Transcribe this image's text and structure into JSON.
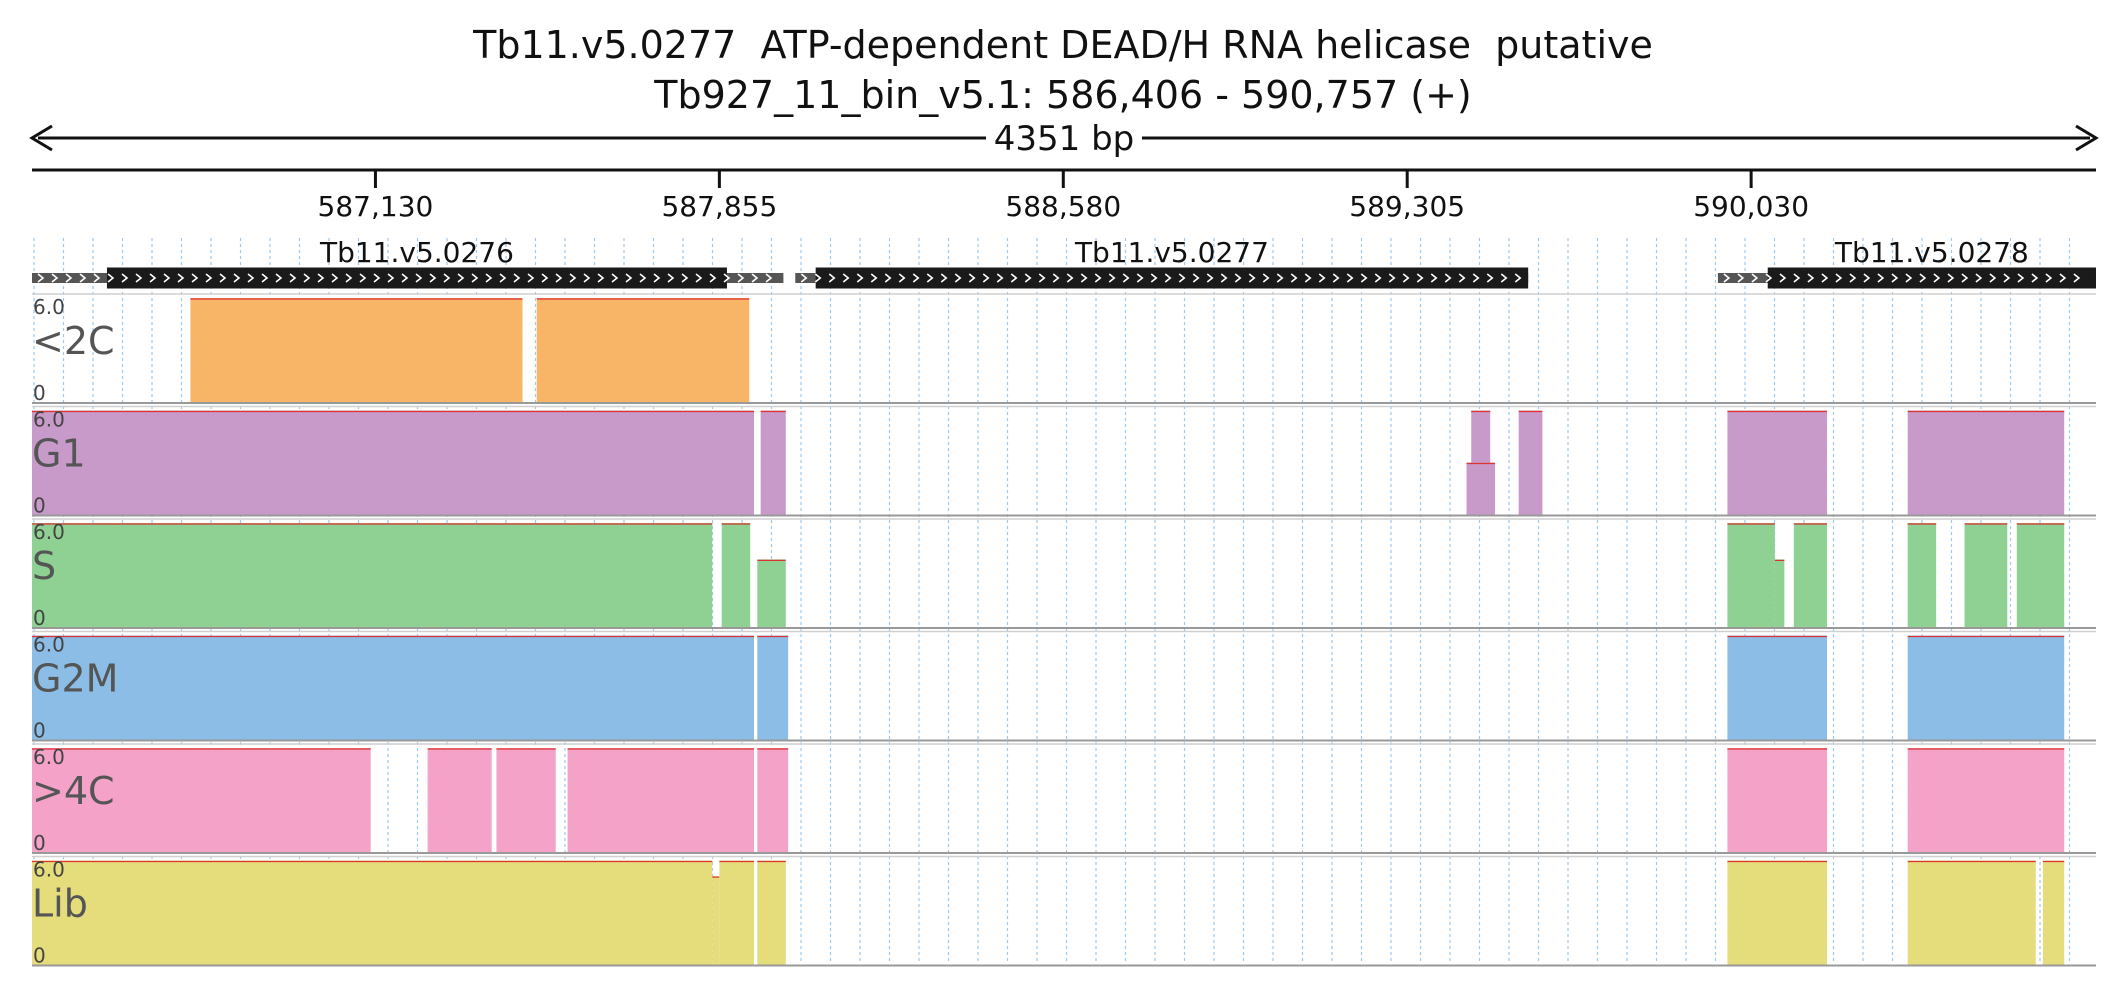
{
  "header": {
    "title": "Tb11.v5.0277  ATP-dependent DEAD/H RNA helicase  putative",
    "location": "Tb927_11_bin_v5.1: 586,406 - 590,757 (+)",
    "span_label": "4351 bp"
  },
  "region": {
    "start": 586406,
    "end": 590757
  },
  "ruler": {
    "ticks": [
      {
        "value": 587130,
        "label": "587,130"
      },
      {
        "value": 587855,
        "label": "587,855"
      },
      {
        "value": 588580,
        "label": "588,580"
      },
      {
        "value": 589305,
        "label": "589,305"
      },
      {
        "value": 590030,
        "label": "590,030"
      }
    ]
  },
  "genes": [
    {
      "name": "Tb11.v5.0276",
      "transcript": [
        586406,
        586968
      ],
      "cds": [
        586564,
        587871
      ],
      "utr": [
        587871,
        587990
      ]
    },
    {
      "name": "Tb11.v5.0277",
      "transcript": [
        588015,
        589560
      ],
      "cds": [
        588058,
        589560
      ],
      "utr": null
    },
    {
      "name": "Tb11.v5.0278",
      "transcript": [
        589960,
        590757
      ],
      "cds": [
        590065,
        590757
      ],
      "utr": null
    }
  ],
  "tracks": [
    {
      "name": "<2C",
      "color": "#f9b567",
      "ymax_label": "6.0",
      "ymin_label": "0",
      "segments": [
        {
          "start": 586740,
          "end": 587440,
          "level": 1.0
        },
        {
          "start": 587470,
          "end": 587918,
          "level": 1.0
        }
      ]
    },
    {
      "name": "G1",
      "color": "#c79ac9",
      "ymax_label": "6.0",
      "ymin_label": "0",
      "segments": [
        {
          "start": 586406,
          "end": 587928,
          "level": 1.0
        },
        {
          "start": 587942,
          "end": 587995,
          "level": 1.0
        },
        {
          "start": 589440,
          "end": 589480,
          "level": 1.0
        },
        {
          "start": 589430,
          "end": 589490,
          "level": 0.5
        },
        {
          "start": 589540,
          "end": 589590,
          "level": 1.0
        },
        {
          "start": 589980,
          "end": 590190,
          "level": 1.0
        },
        {
          "start": 590360,
          "end": 590690,
          "level": 1.0
        }
      ]
    },
    {
      "name": "S",
      "color": "#8ed193",
      "ymax_label": "6.0",
      "ymin_label": "0",
      "segments": [
        {
          "start": 586406,
          "end": 587840,
          "level": 1.0
        },
        {
          "start": 587860,
          "end": 587920,
          "level": 1.0
        },
        {
          "start": 587935,
          "end": 587995,
          "level": 0.65
        },
        {
          "start": 589980,
          "end": 590080,
          "level": 1.0
        },
        {
          "start": 590080,
          "end": 590100,
          "level": 0.65
        },
        {
          "start": 590120,
          "end": 590190,
          "level": 1.0
        },
        {
          "start": 590360,
          "end": 590420,
          "level": 1.0
        },
        {
          "start": 590480,
          "end": 590570,
          "level": 1.0
        },
        {
          "start": 590590,
          "end": 590690,
          "level": 1.0
        }
      ]
    },
    {
      "name": "G2M",
      "color": "#8bbde6",
      "ymax_label": "6.0",
      "ymin_label": "0",
      "segments": [
        {
          "start": 586406,
          "end": 587928,
          "level": 1.0
        },
        {
          "start": 587935,
          "end": 588000,
          "level": 1.0
        },
        {
          "start": 589980,
          "end": 590190,
          "level": 1.0
        },
        {
          "start": 590360,
          "end": 590690,
          "level": 1.0
        }
      ]
    },
    {
      "name": ">4C",
      "color": "#f5a2c9",
      "ymax_label": "6.0",
      "ymin_label": "0",
      "segments": [
        {
          "start": 586406,
          "end": 587120,
          "level": 1.0
        },
        {
          "start": 587240,
          "end": 587375,
          "level": 1.0
        },
        {
          "start": 587385,
          "end": 587510,
          "level": 1.0
        },
        {
          "start": 587535,
          "end": 587928,
          "level": 1.0
        },
        {
          "start": 587935,
          "end": 588000,
          "level": 1.0
        },
        {
          "start": 589980,
          "end": 590190,
          "level": 1.0
        },
        {
          "start": 590360,
          "end": 590690,
          "level": 1.0
        }
      ]
    },
    {
      "name": "Lib",
      "color": "#e5dc7c",
      "ymax_label": "6.0",
      "ymin_label": "0",
      "segments": [
        {
          "start": 586406,
          "end": 587840,
          "level": 1.0
        },
        {
          "start": 587840,
          "end": 587855,
          "level": 0.85
        },
        {
          "start": 587855,
          "end": 587928,
          "level": 1.0
        },
        {
          "start": 587935,
          "end": 587995,
          "level": 1.0
        },
        {
          "start": 589980,
          "end": 590190,
          "level": 1.0
        },
        {
          "start": 590360,
          "end": 590630,
          "level": 1.0
        },
        {
          "start": 590645,
          "end": 590690,
          "level": 1.0
        }
      ]
    }
  ]
}
